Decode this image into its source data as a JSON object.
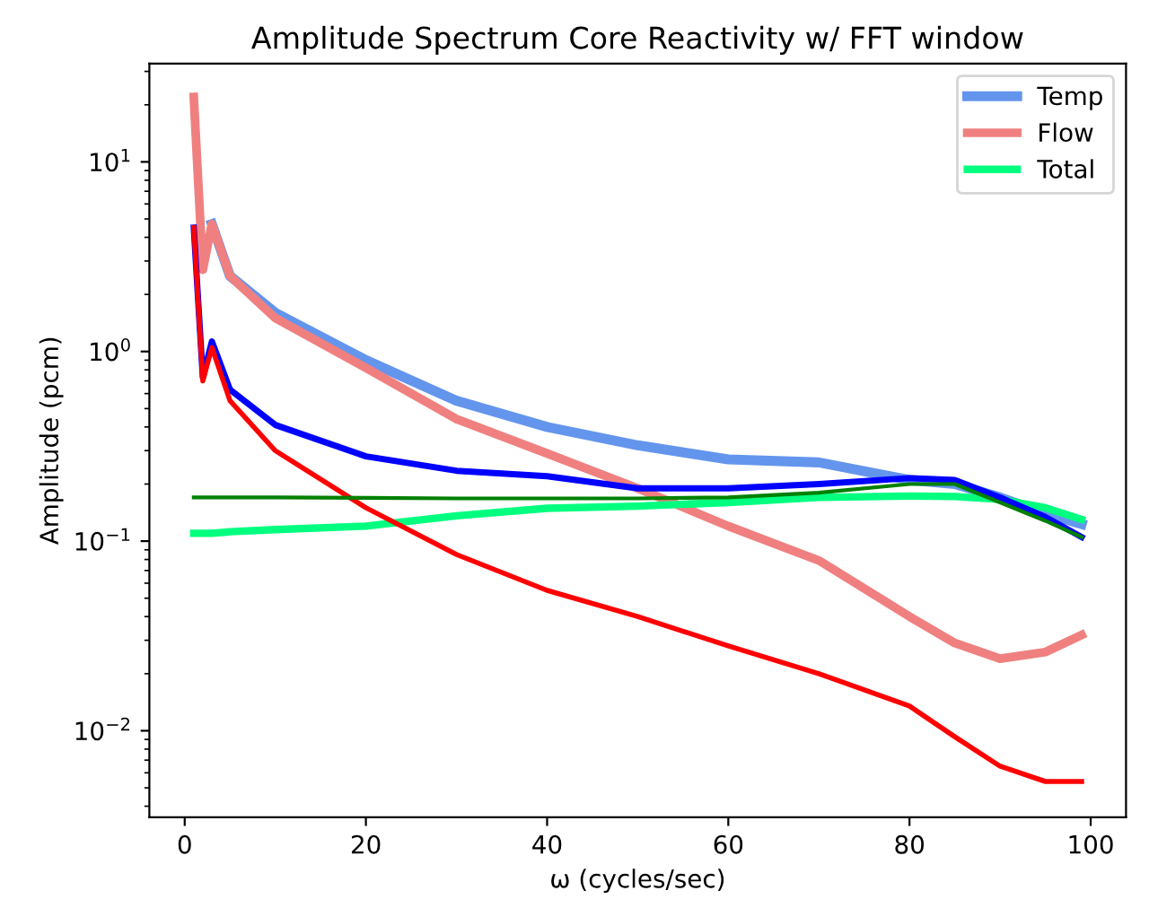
{
  "chart_data": {
    "type": "line",
    "title": "Amplitude Spectrum Core Reactivity w/ FFT window",
    "xlabel": "ω (cycles/sec)",
    "ylabel": "Amplitude (pcm)",
    "log": "y",
    "grid": false,
    "legend": "top right",
    "line_style": "solid",
    "marker": "none",
    "x": [
      1,
      2,
      3,
      5,
      10,
      20,
      30,
      40,
      50,
      60,
      70,
      80,
      85,
      90,
      95,
      99
    ],
    "series": [
      {
        "name": "Temp",
        "color": "#6495ed",
        "values": [
          null,
          null,
          4.7,
          2.5,
          1.6,
          0.9,
          0.55,
          0.4,
          0.32,
          0.27,
          0.26,
          0.21,
          0.2,
          0.17,
          0.14,
          0.123
        ]
      },
      {
        "name": "Flow",
        "color": "#f08080",
        "values": [
          22,
          2.7,
          4.7,
          2.5,
          1.5,
          0.82,
          0.44,
          0.29,
          0.19,
          0.12,
          0.079,
          0.04,
          0.029,
          0.024,
          0.026,
          0.032
        ]
      },
      {
        "name": "Total",
        "color": "#00ff7f",
        "values": [
          0.11,
          0.11,
          0.11,
          0.112,
          0.115,
          0.12,
          0.136,
          0.149,
          0.153,
          0.16,
          0.17,
          0.173,
          0.172,
          0.166,
          0.15,
          0.13
        ]
      },
      {
        "color": "#0000ff",
        "values": [
          4.5,
          0.73,
          1.13,
          0.63,
          0.41,
          0.28,
          0.235,
          0.22,
          0.19,
          0.19,
          0.2,
          0.215,
          0.21,
          0.17,
          0.134,
          0.105
        ]
      },
      {
        "color": "#ff0000",
        "values": [
          4.5,
          0.7,
          1.05,
          0.55,
          0.3,
          0.15,
          0.085,
          0.055,
          0.04,
          0.028,
          0.02,
          0.0135,
          0.0093,
          0.0065,
          0.0054,
          0.0054
        ]
      },
      {
        "color": "#008000",
        "values": [
          0.17,
          0.17,
          0.17,
          0.17,
          0.17,
          0.169,
          0.168,
          0.168,
          0.168,
          0.17,
          0.18,
          0.2,
          0.2,
          0.16,
          0.128,
          0.105
        ]
      }
    ],
    "xlim": [
      -3.9,
      103.9
    ],
    "xticks": [
      0,
      20,
      40,
      60,
      80,
      100
    ],
    "ylim": [
      0.0035,
      33
    ],
    "yticks": [
      {
        "value": 0.01,
        "label": "10$^{−2}$"
      },
      {
        "value": 0.1,
        "label": "10$^{−1}$"
      },
      {
        "value": 1,
        "label": "10$^{0}$"
      },
      {
        "value": 10,
        "label": "10$^{1}$"
      }
    ]
  }
}
